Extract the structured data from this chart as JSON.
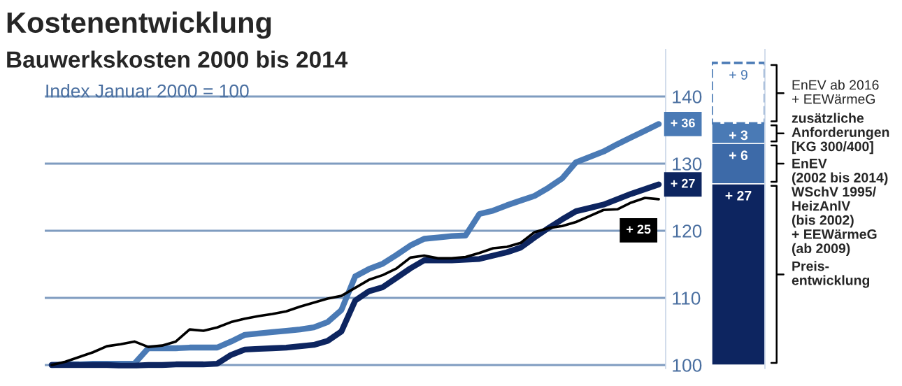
{
  "chart_data": [
    {
      "type": "line",
      "title": "Kostenentwicklung",
      "subtitle": "Bauwerkskosten 2000 bis 2014",
      "annotations": [
        "Index Januar 2000 = 100",
        {
          "text": "+ 36",
          "y": 135.9
        },
        {
          "text": "+ 27",
          "y": 126.9
        },
        {
          "text": "+ 25",
          "y": 124.7
        }
      ],
      "categories": [
        null,
        null,
        null,
        null,
        null,
        null,
        null,
        null,
        null,
        null,
        null,
        null,
        null,
        null,
        null,
        null,
        null,
        null,
        null,
        null,
        null,
        null,
        null,
        null,
        null,
        null,
        null,
        null,
        null,
        null,
        null,
        null,
        null,
        null,
        null,
        null,
        null,
        null,
        null,
        null,
        null,
        null,
        null,
        null,
        null
      ],
      "series": [
        {
          "color": "#4a7ab5",
          "values": [
            100.0,
            100.1,
            100.1,
            100.2,
            100.2,
            100.2,
            100.2,
            102.5,
            102.5,
            102.5,
            102.6,
            102.6,
            102.6,
            103.5,
            104.5,
            104.7,
            104.9,
            105.1,
            105.3,
            105.6,
            106.4,
            108.2,
            113.2,
            114.3,
            115.1,
            116.4,
            117.8,
            118.8,
            119.0,
            119.2,
            119.3,
            122.5,
            123.0,
            123.8,
            124.5,
            125.2,
            126.4,
            127.8,
            130.2,
            131.0,
            131.8,
            132.9,
            133.9,
            134.9,
            135.9
          ]
        },
        {
          "color": "#0d2560",
          "values": [
            100.0,
            100.0,
            100.0,
            100.0,
            100.0,
            99.9,
            99.9,
            100.0,
            100.0,
            100.1,
            100.1,
            100.1,
            100.2,
            101.5,
            102.3,
            102.4,
            102.5,
            102.6,
            102.8,
            103.0,
            103.6,
            105.0,
            109.6,
            111.0,
            111.6,
            113.0,
            114.4,
            115.6,
            115.6,
            115.6,
            115.7,
            115.8,
            116.3,
            116.8,
            117.5,
            119.0,
            120.4,
            121.7,
            122.9,
            123.4,
            123.9,
            124.7,
            125.5,
            126.2,
            126.9
          ]
        },
        {
          "color": "#000000",
          "values": [
            100.0,
            100.5,
            101.2,
            101.9,
            102.8,
            103.1,
            103.5,
            102.7,
            102.9,
            103.5,
            105.3,
            105.1,
            105.6,
            106.4,
            106.9,
            107.3,
            107.6,
            108.0,
            108.7,
            109.3,
            109.9,
            110.3,
            111.5,
            112.7,
            113.4,
            114.4,
            116.0,
            116.3,
            115.9,
            115.9,
            116.1,
            116.7,
            117.4,
            117.6,
            118.2,
            119.8,
            120.4,
            120.7,
            121.3,
            122.2,
            123.1,
            123.2,
            124.2,
            124.9,
            124.7
          ]
        }
      ],
      "ylim": [
        99.5,
        147
      ],
      "yticks": [
        100,
        110,
        120,
        130,
        140
      ],
      "grid": "y",
      "tick_labels": "y"
    },
    {
      "type": "bar",
      "stacked": true,
      "categories": [
        null
      ],
      "annotations": [
        "Preis-\nentwicklung",
        "EnEV\n(2002 bis 2014)\nWSchV 1995/\nHeizAnlV\n(bis 2002)\n+ EEWärmeG\n(ab 2009)",
        "zusätzliche\nAnforderungen\n[KG 300/400]",
        "EnEV ab 2016\n+ EEWärmeG"
      ],
      "series": [
        {
          "color": "#0d2560",
          "values": [
            27
          ],
          "value_labels": [
            "+ 27"
          ]
        },
        {
          "color": "#3d6aa8",
          "values": [
            6
          ],
          "value_labels": [
            "+ 6"
          ]
        },
        {
          "color": "#4a7ab5",
          "values": [
            3
          ],
          "value_labels": [
            "+ 3"
          ]
        },
        {
          "color": "#4a7ab5",
          "values": [
            9
          ],
          "value_labels": [
            "+ 9"
          ],
          "line_style": "dashed"
        }
      ],
      "ylim": [
        -0.5,
        47
      ],
      "tick_labels": false
    }
  ]
}
